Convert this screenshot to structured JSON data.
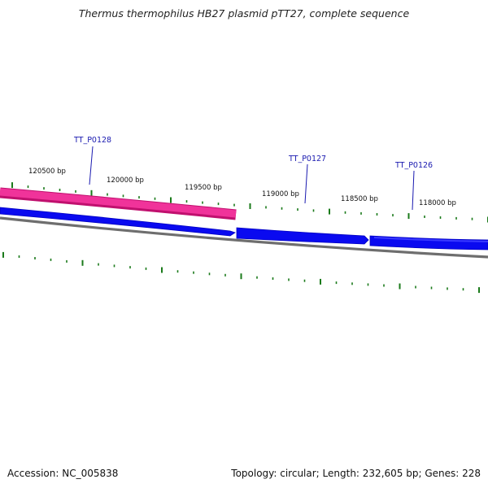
{
  "title": "Thermus thermophilus HB27 plasmid pTT27, complete sequence",
  "footer": {
    "accession": "Accession: NC_005838",
    "summary": "Topology: circular; Length: 232,605 bp; Genes: 228"
  },
  "scale_labels": [
    "120500 bp",
    "120000 bp",
    "119500 bp",
    "119000 bp",
    "118500 bp",
    "118000 bp"
  ],
  "genes": [
    {
      "id": "TT_P0128",
      "strand": "reverse",
      "color": "#e8198a"
    },
    {
      "id": "TT_P0127",
      "strand": "forward",
      "color": "#0a0af0"
    },
    {
      "id": "TT_P0126",
      "strand": "forward",
      "color": "#0a0af0"
    }
  ],
  "colors": {
    "forward_gene": "#0a0af0",
    "reverse_gene": "#e8198a",
    "backbone": "#7a7a7a",
    "ticks": "#1a7a1a",
    "gene_label": "#1a1ab0"
  }
}
